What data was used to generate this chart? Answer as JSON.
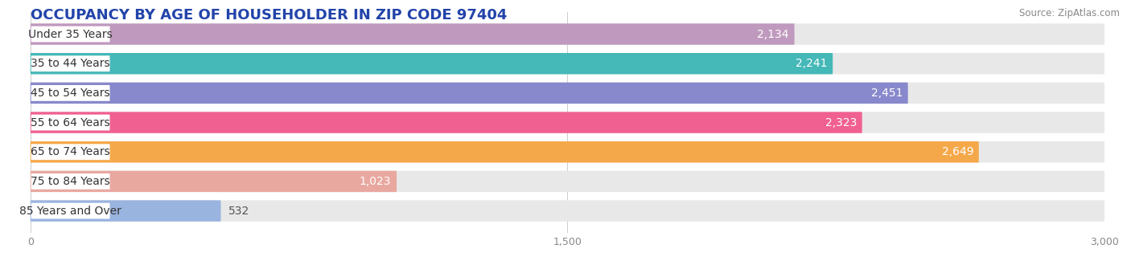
{
  "title": "OCCUPANCY BY AGE OF HOUSEHOLDER IN ZIP CODE 97404",
  "source": "Source: ZipAtlas.com",
  "categories": [
    "Under 35 Years",
    "35 to 44 Years",
    "45 to 54 Years",
    "55 to 64 Years",
    "65 to 74 Years",
    "75 to 84 Years",
    "85 Years and Over"
  ],
  "values": [
    2134,
    2241,
    2451,
    2323,
    2649,
    1023,
    532
  ],
  "bar_colors": [
    "#c09abe",
    "#45b8b8",
    "#8888cc",
    "#f06090",
    "#f5a84a",
    "#e8a8a0",
    "#9ab4e0"
  ],
  "bar_bg_colors": [
    "#ebebeb",
    "#ebebeb",
    "#ebebeb",
    "#ebebeb",
    "#ebebeb",
    "#ebebeb",
    "#ebebeb"
  ],
  "xlim": [
    0,
    3000
  ],
  "xticks": [
    0,
    1500,
    3000
  ],
  "xticklabels": [
    "0",
    "1,500",
    "3,000"
  ],
  "title_fontsize": 13,
  "label_fontsize": 10,
  "value_fontsize": 10,
  "background_color": "#ffffff"
}
